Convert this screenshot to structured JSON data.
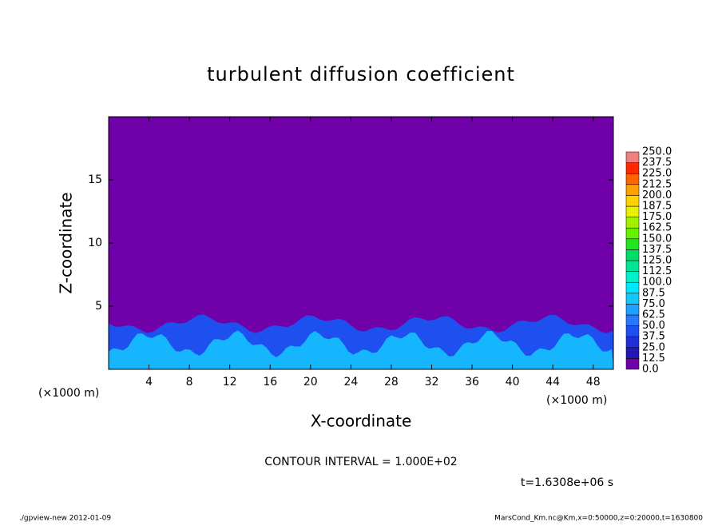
{
  "chart_data": {
    "type": "contour",
    "title": "turbulent diffusion coefficient",
    "x_label": "X-coordinate",
    "y_label": "Z-coordinate",
    "x_unit_left": "(×1000 m)",
    "x_unit_right": "(×1000 m)",
    "contour_interval": "CONTOUR INTERVAL = 1.000E+02",
    "time_label": "t=1.6308e+06 s",
    "footer_left": "./gpview-new  2012-01-09",
    "footer_right": "MarsCond_Km.nc@Km,x=0:50000,z=0:20000,t=1630800",
    "xlim": [
      0,
      50
    ],
    "xticks": [
      4,
      8,
      12,
      16,
      20,
      24,
      28,
      32,
      36,
      40,
      44,
      48
    ],
    "ylim": [
      0,
      20
    ],
    "yticks": [
      5,
      10,
      15
    ],
    "levels": [
      {
        "value": 0,
        "label": "0.0"
      },
      {
        "value": 12.5,
        "label": "12.5"
      },
      {
        "value": 25,
        "label": "25.0"
      },
      {
        "value": 37.5,
        "label": "37.5"
      },
      {
        "value": 50,
        "label": "50.0"
      },
      {
        "value": 62.5,
        "label": "62.5"
      },
      {
        "value": 75,
        "label": "75.0"
      },
      {
        "value": 87.5,
        "label": "87.5"
      },
      {
        "value": 100,
        "label": "100.0"
      },
      {
        "value": 112.5,
        "label": "112.5"
      },
      {
        "value": 125,
        "label": "125.0"
      },
      {
        "value": 137.5,
        "label": "137.5"
      },
      {
        "value": 150,
        "label": "150.0"
      },
      {
        "value": 162.5,
        "label": "162.5"
      },
      {
        "value": 175,
        "label": "175.0"
      },
      {
        "value": 187.5,
        "label": "187.5"
      },
      {
        "value": 200,
        "label": "200.0"
      },
      {
        "value": 212.5,
        "label": "212.5"
      },
      {
        "value": 225,
        "label": "225.0"
      },
      {
        "value": 237.5,
        "label": "237.5"
      },
      {
        "value": 250,
        "label": "250.0"
      }
    ],
    "level_colors": [
      "#7000a8",
      "#2018b0",
      "#2030d8",
      "#1e50f0",
      "#2878ff",
      "#1ea0ff",
      "#14c8ff",
      "#00e6ff",
      "#00f0c8",
      "#00e696",
      "#00dc64",
      "#20e620",
      "#64f000",
      "#a0f000",
      "#e6f000",
      "#ffd200",
      "#ffa000",
      "#ff6400",
      "#ff2800",
      "#f08080"
    ]
  }
}
